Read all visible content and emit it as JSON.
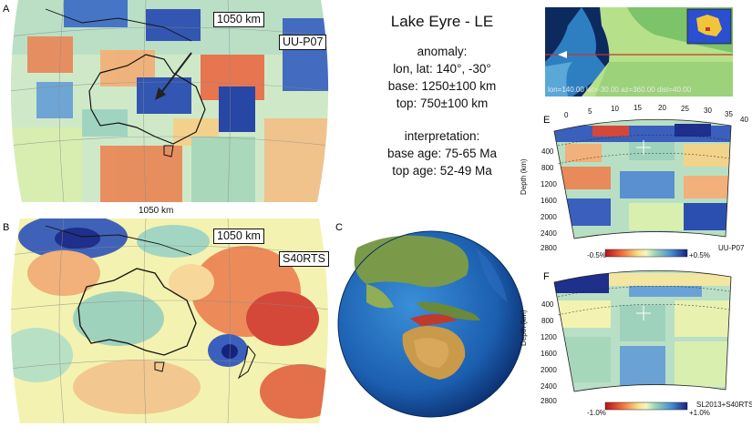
{
  "panel_letters": {
    "a": "A",
    "b": "B",
    "c": "C",
    "e": "E",
    "f": "F"
  },
  "panel_a": {
    "distance_tag": "1050 km",
    "model_tag": "UU-P07",
    "caption": "1050 km"
  },
  "panel_b": {
    "distance_tag": "1050 km",
    "model_tag": "S40RTS"
  },
  "info": {
    "title": "Lake Eyre - LE",
    "anomaly_heading": "anomaly:",
    "lonlat": "lon, lat: 140°, -30°",
    "base": "base: 1250±100 km",
    "top": "top: 750±100 km",
    "interp_heading": "interpretation:",
    "base_age": "base age: 75-65 Ma",
    "top_age": "top age: 52-49 Ma"
  },
  "profile_map": {
    "caption": "lon=140.00 lat=-30.00 az=360.00 dist=40.00"
  },
  "panel_e": {
    "x_ticks": [
      "0",
      "5",
      "10",
      "15",
      "20",
      "25",
      "30",
      "35",
      "40"
    ],
    "y_ticks": [
      "400",
      "800",
      "1200",
      "1600",
      "2000",
      "2400",
      "2800"
    ],
    "y_label": "Depth (km)",
    "scale_min": "-0.5%",
    "scale_max": "+0.5%",
    "model": "UU-P07"
  },
  "panel_f": {
    "y_ticks": [
      "400",
      "800",
      "1200",
      "1600",
      "2000",
      "2400",
      "2800"
    ],
    "y_label": "Depth (km)",
    "scale_min": "-1.0%",
    "scale_max": "+1.0%",
    "model": "SL2013+S40RTS"
  },
  "colors": {
    "slow": "#c8102e",
    "fast": "#1a3fa6",
    "neutral": "#eef3b8",
    "profile_line": "#c0392b"
  }
}
